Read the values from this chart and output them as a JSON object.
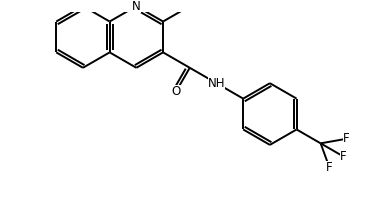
{
  "bg_color": "#ffffff",
  "line_color": "#000000",
  "lw": 1.4,
  "font_size": 8.5,
  "figsize": [
    3.92,
    1.98
  ],
  "dpi": 100,
  "xlim": [
    -0.5,
    10.5
  ],
  "ylim": [
    -3.2,
    2.8
  ]
}
